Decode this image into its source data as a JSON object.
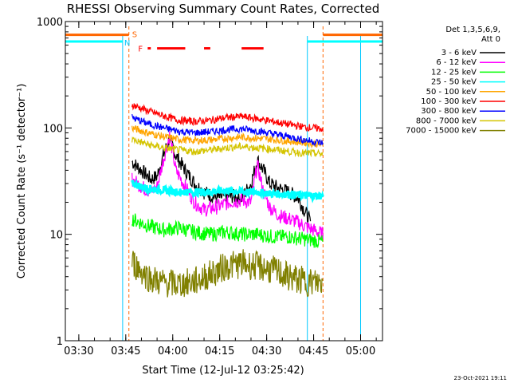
{
  "chart_data": {
    "type": "line",
    "title": "RHESSI Observing Summary Count Rates, Corrected",
    "xlabel": "Start Time (12-Jul-12 03:25:42)",
    "ylabel": "Corrected Count Rate (s⁻¹ detector⁻¹)",
    "yscale": "log",
    "ylim": [
      1,
      1000
    ],
    "xlim": [
      "03:25:42",
      "05:07:00"
    ],
    "x_ticks": [
      "03:30",
      "03:45",
      "04:00",
      "04:15",
      "04:30",
      "04:45",
      "05:00"
    ],
    "y_ticks": [
      "1",
      "10",
      "100",
      "1000"
    ],
    "legend_title": [
      "Det 1,3,5,6,9,",
      "Att 0"
    ],
    "legend_position": "right",
    "footer": "23-Oct-2021 19:11",
    "flags": {
      "s_label": "S",
      "n_label": "N",
      "f_label": "F"
    },
    "series": [
      {
        "name": "3 - 6 keV",
        "color": "#000000",
        "x": [
          "03:47",
          "03:50",
          "03:53",
          "03:55",
          "03:57",
          "03:59",
          "04:01",
          "04:04",
          "04:07",
          "04:10",
          "04:14",
          "04:18",
          "04:22",
          "04:25",
          "04:27",
          "04:29",
          "04:31",
          "04:34",
          "04:37",
          "04:40",
          "04:42",
          "04:44"
        ],
        "y": [
          48,
          40,
          33,
          35,
          55,
          80,
          55,
          40,
          30,
          25,
          22,
          23,
          22,
          30,
          50,
          40,
          30,
          27,
          25,
          22,
          17,
          13
        ]
      },
      {
        "name": "6 - 12 keV",
        "color": "#ff00ff",
        "x": [
          "03:47",
          "03:50",
          "03:53",
          "03:55",
          "03:57",
          "03:59",
          "04:01",
          "04:04",
          "04:07",
          "04:10",
          "04:14",
          "04:18",
          "04:22",
          "04:25",
          "04:27",
          "04:29",
          "04:31",
          "04:34",
          "04:37",
          "04:40",
          "04:42",
          "04:45",
          "04:48"
        ],
        "y": [
          33,
          28,
          25,
          28,
          50,
          85,
          40,
          28,
          20,
          17,
          18,
          20,
          21,
          20,
          45,
          25,
          18,
          15,
          14,
          13,
          12,
          11,
          10
        ]
      },
      {
        "name": "12 - 25 keV",
        "color": "#00ff00",
        "x": [
          "03:47",
          "03:52",
          "03:57",
          "04:02",
          "04:07",
          "04:12",
          "04:17",
          "04:22",
          "04:27",
          "04:32",
          "04:37",
          "04:42",
          "04:48"
        ],
        "y": [
          14,
          12,
          11,
          11.5,
          10.5,
          10,
          10.5,
          10,
          10,
          9.5,
          9.5,
          9,
          8.5
        ]
      },
      {
        "name": "25 - 50 keV",
        "color": "#00ffff",
        "x": [
          "03:47",
          "03:52",
          "03:57",
          "04:02",
          "04:07",
          "04:12",
          "04:17",
          "04:22",
          "04:27",
          "04:32",
          "04:37",
          "04:42",
          "04:48"
        ],
        "y": [
          30,
          27,
          26,
          25,
          25,
          25,
          26,
          25,
          25,
          24,
          24,
          23,
          23
        ]
      },
      {
        "name": "50 - 100 keV",
        "color": "#ffa500",
        "x": [
          "03:47",
          "03:52",
          "03:57",
          "04:02",
          "04:07",
          "04:12",
          "04:17",
          "04:22",
          "04:27",
          "04:32",
          "04:37",
          "04:42",
          "04:48"
        ],
        "y": [
          100,
          90,
          83,
          78,
          76,
          77,
          80,
          82,
          80,
          78,
          75,
          73,
          70
        ]
      },
      {
        "name": "100 - 300 keV",
        "color": "#ff0000",
        "x": [
          "03:47",
          "03:52",
          "03:57",
          "04:02",
          "04:07",
          "04:12",
          "04:17",
          "04:22",
          "04:27",
          "04:32",
          "04:37",
          "04:42",
          "04:48"
        ],
        "y": [
          165,
          145,
          130,
          118,
          115,
          118,
          125,
          128,
          122,
          115,
          108,
          102,
          98
        ]
      },
      {
        "name": "300 - 800 keV",
        "color": "#0000ff",
        "x": [
          "03:47",
          "03:52",
          "03:57",
          "04:02",
          "04:07",
          "04:12",
          "04:17",
          "04:22",
          "04:27",
          "04:32",
          "04:37",
          "04:42",
          "04:48"
        ],
        "y": [
          125,
          110,
          100,
          93,
          90,
          92,
          96,
          98,
          94,
          88,
          83,
          77,
          72
        ]
      },
      {
        "name": "800 - 7000 keV",
        "color": "#d4c400",
        "x": [
          "03:47",
          "03:52",
          "03:57",
          "04:02",
          "04:07",
          "04:12",
          "04:17",
          "04:22",
          "04:27",
          "04:32",
          "04:37",
          "04:42",
          "04:48"
        ],
        "y": [
          78,
          70,
          65,
          62,
          60,
          62,
          65,
          67,
          65,
          63,
          60,
          58,
          57
        ]
      },
      {
        "name": "7000 - 15000 keV",
        "color": "#808000",
        "x": [
          "03:47",
          "03:50",
          "03:53",
          "03:57",
          "04:02",
          "04:07",
          "04:12",
          "04:17",
          "04:22",
          "04:27",
          "04:32",
          "04:37",
          "04:42",
          "04:48"
        ],
        "y": [
          5.5,
          4.5,
          3.8,
          3.5,
          3.4,
          3.6,
          4.2,
          5,
          5.3,
          5,
          4.6,
          4,
          3.6,
          3.5
        ]
      }
    ],
    "guides": {
      "orange_vertical": [
        "03:46",
        "04:48"
      ],
      "cyan_vertical": [
        "03:44",
        "04:43",
        "05:00"
      ]
    }
  }
}
